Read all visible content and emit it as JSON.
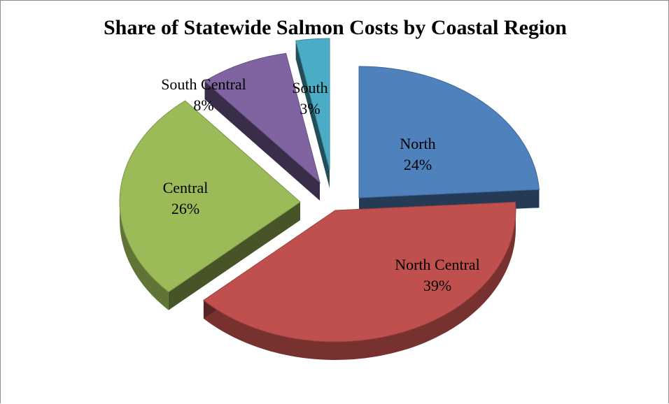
{
  "chart_data": {
    "type": "pie",
    "title": "Share of Statewide Salmon Costs by Coastal Region",
    "slices": [
      {
        "label": "North",
        "value": 24,
        "value_label": "24%",
        "color": "#4f81bd"
      },
      {
        "label": "North Central",
        "value": 39,
        "value_label": "39%",
        "color": "#c0504d"
      },
      {
        "label": "Central",
        "value": 26,
        "value_label": "26%",
        "color": "#9bbb59"
      },
      {
        "label": "South Central",
        "value": 8,
        "value_label": "8%",
        "color": "#8064a2"
      },
      {
        "label": "South",
        "value": 3,
        "value_label": "3%",
        "color": "#4bacc6"
      }
    ],
    "style": "3d-exploded-pie",
    "legend": "none"
  }
}
